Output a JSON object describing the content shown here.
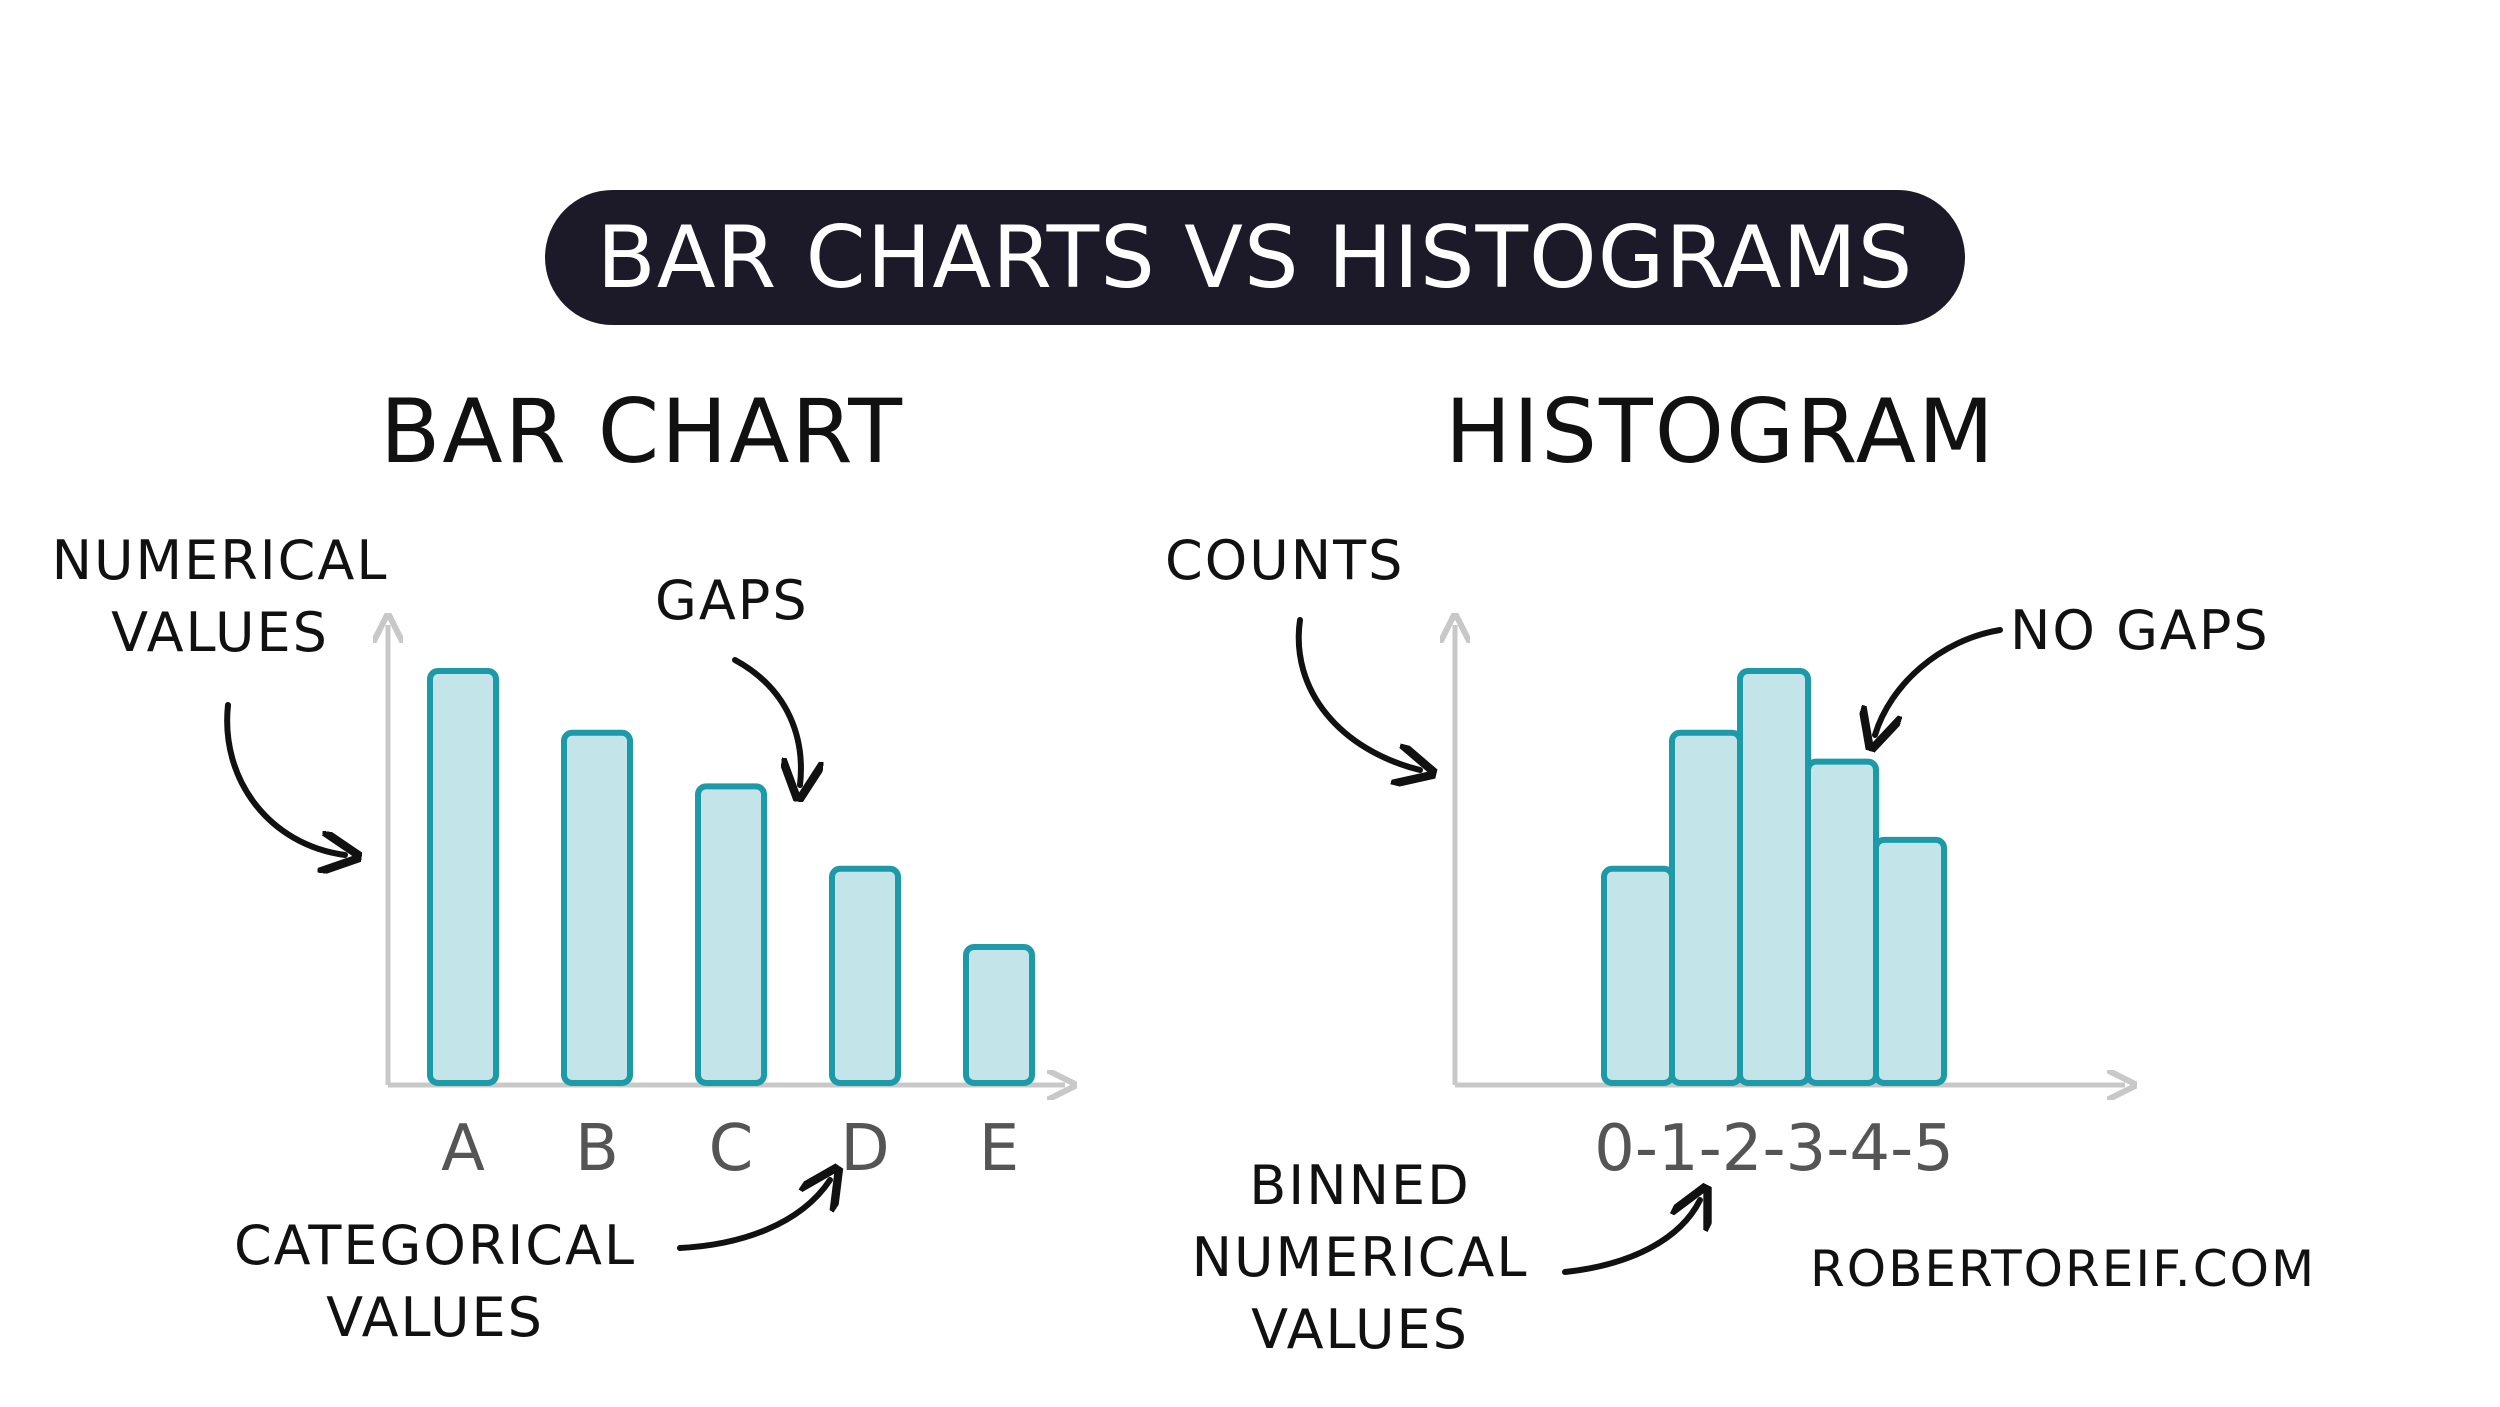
{
  "title": "BAR CHARTS VS HISTOGRAMS",
  "bar_chart": {
    "heading": "BAR CHART",
    "y_annotation": [
      "NUMERICAL",
      "VALUES"
    ],
    "gaps_annotation": "GAPS",
    "x_annotation": [
      "CATEGORICAL",
      "VALUES"
    ]
  },
  "histogram": {
    "heading": "HISTOGRAM",
    "y_annotation": "COUNTS",
    "gaps_annotation": "NO GAPS",
    "x_annotation": [
      "BINNED",
      "NUMERICAL",
      "VALUES"
    ]
  },
  "credit": "ROBERTOREIF.COM",
  "colors": {
    "bar_fill": "#c3e5ea",
    "bar_stroke": "#1d9aa8",
    "axis": "#c8c8c8",
    "pill": "#1c1a28"
  },
  "chart_data": [
    {
      "type": "bar",
      "categories": [
        "A",
        "B",
        "C",
        "D",
        "E"
      ],
      "values": [
        100,
        85,
        72,
        52,
        33
      ]
    },
    {
      "type": "bar",
      "tick_labels": [
        "0",
        "1",
        "2",
        "3",
        "4",
        "5"
      ],
      "bins": [
        "0-1",
        "1-2",
        "2-3",
        "3-4",
        "4-5"
      ],
      "values": [
        52,
        85,
        100,
        78,
        59
      ]
    }
  ]
}
